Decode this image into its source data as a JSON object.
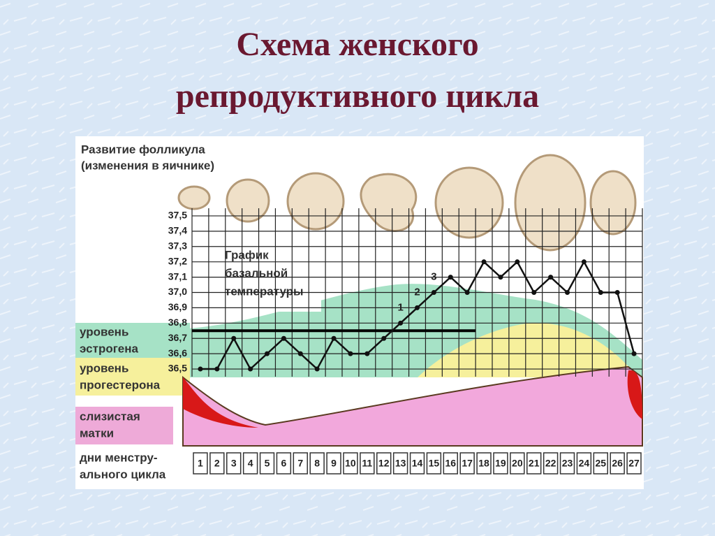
{
  "chart_data": {
    "type": "line",
    "title": [
      "Схема женского",
      "репродуктивного цикла"
    ],
    "follicle_label": [
      "Развитие фолликула",
      "(изменения в яичнике)"
    ],
    "chart_label": [
      "График",
      "базальной",
      "температуры"
    ],
    "estrogen_label": [
      "уровень",
      "эстрогена"
    ],
    "progesterone_label": [
      "уровень",
      "прогестерона"
    ],
    "endometrium_label": [
      "слизистая",
      "матки"
    ],
    "days_label": [
      "дни менстру-",
      "ального цикла"
    ],
    "annotations": [
      "1",
      "2",
      "3"
    ],
    "categories": [
      "1",
      "2",
      "3",
      "4",
      "5",
      "6",
      "7",
      "8",
      "9",
      "10",
      "11",
      "12",
      "13",
      "14",
      "15",
      "16",
      "17",
      "18",
      "19",
      "20",
      "21",
      "22",
      "23",
      "24",
      "25",
      "26",
      "27"
    ],
    "values": [
      36.5,
      36.5,
      36.7,
      36.5,
      36.6,
      36.7,
      36.6,
      36.5,
      36.7,
      36.6,
      36.6,
      36.7,
      36.8,
      36.9,
      37.0,
      37.1,
      37.0,
      37.2,
      37.1,
      37.2,
      37.0,
      37.1,
      37.0,
      37.2,
      37.0,
      37.0,
      36.6
    ],
    "color": "#111111",
    "threshold": 36.75,
    "ylim": [
      36.45,
      37.55
    ],
    "yticks": [
      {
        "value": 36.5,
        "label": "36,5"
      },
      {
        "value": 36.6,
        "label": "36,6"
      },
      {
        "value": 36.7,
        "label": "36,7"
      },
      {
        "value": 36.8,
        "label": "36,8"
      },
      {
        "value": 36.9,
        "label": "36,9"
      },
      {
        "value": 37.0,
        "label": "37,0"
      },
      {
        "value": 37.1,
        "label": "37,1"
      },
      {
        "value": 37.2,
        "label": "37,2"
      },
      {
        "value": 37.3,
        "label": "37,3"
      },
      {
        "value": 37.4,
        "label": "37,4"
      },
      {
        "value": 37.5,
        "label": "37,5"
      }
    ],
    "grid": true
  }
}
